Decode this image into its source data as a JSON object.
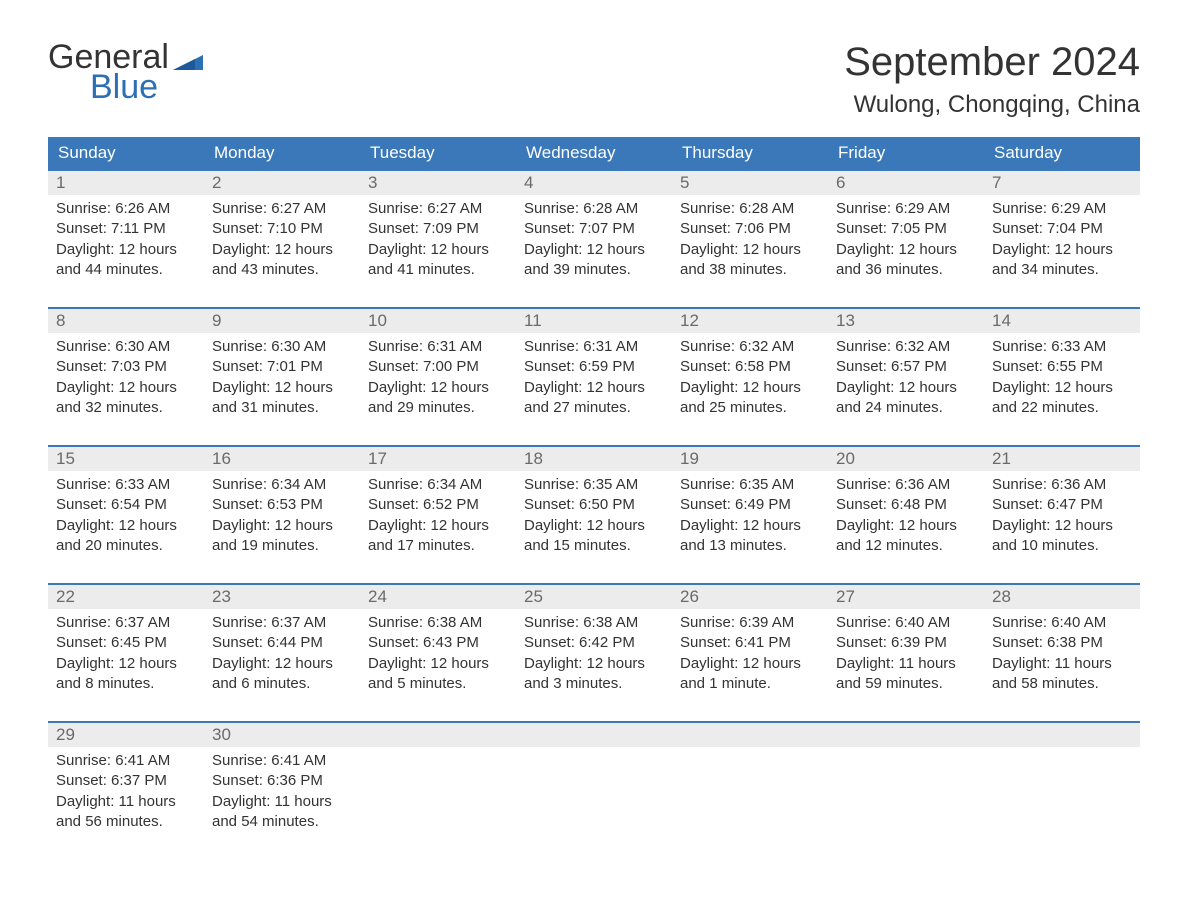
{
  "logo": {
    "text1": "General",
    "text2": "Blue",
    "flag_color": "#2d6fb5"
  },
  "title": "September 2024",
  "location": "Wulong, Chongqing, China",
  "colors": {
    "header_bg": "#3a78b9",
    "header_text": "#ffffff",
    "daynum_bg": "#ececec",
    "daynum_text": "#6a6a6a",
    "body_text": "#333333",
    "row_border": "#3a78b9",
    "background": "#ffffff"
  },
  "fonts": {
    "title_size_pt": 30,
    "location_size_pt": 18,
    "header_size_pt": 13,
    "body_size_pt": 11
  },
  "weekdays": [
    "Sunday",
    "Monday",
    "Tuesday",
    "Wednesday",
    "Thursday",
    "Friday",
    "Saturday"
  ],
  "weeks": [
    [
      {
        "n": "1",
        "sunrise": "6:26 AM",
        "sunset": "7:11 PM",
        "daylight": "12 hours and 44 minutes."
      },
      {
        "n": "2",
        "sunrise": "6:27 AM",
        "sunset": "7:10 PM",
        "daylight": "12 hours and 43 minutes."
      },
      {
        "n": "3",
        "sunrise": "6:27 AM",
        "sunset": "7:09 PM",
        "daylight": "12 hours and 41 minutes."
      },
      {
        "n": "4",
        "sunrise": "6:28 AM",
        "sunset": "7:07 PM",
        "daylight": "12 hours and 39 minutes."
      },
      {
        "n": "5",
        "sunrise": "6:28 AM",
        "sunset": "7:06 PM",
        "daylight": "12 hours and 38 minutes."
      },
      {
        "n": "6",
        "sunrise": "6:29 AM",
        "sunset": "7:05 PM",
        "daylight": "12 hours and 36 minutes."
      },
      {
        "n": "7",
        "sunrise": "6:29 AM",
        "sunset": "7:04 PM",
        "daylight": "12 hours and 34 minutes."
      }
    ],
    [
      {
        "n": "8",
        "sunrise": "6:30 AM",
        "sunset": "7:03 PM",
        "daylight": "12 hours and 32 minutes."
      },
      {
        "n": "9",
        "sunrise": "6:30 AM",
        "sunset": "7:01 PM",
        "daylight": "12 hours and 31 minutes."
      },
      {
        "n": "10",
        "sunrise": "6:31 AM",
        "sunset": "7:00 PM",
        "daylight": "12 hours and 29 minutes."
      },
      {
        "n": "11",
        "sunrise": "6:31 AM",
        "sunset": "6:59 PM",
        "daylight": "12 hours and 27 minutes."
      },
      {
        "n": "12",
        "sunrise": "6:32 AM",
        "sunset": "6:58 PM",
        "daylight": "12 hours and 25 minutes."
      },
      {
        "n": "13",
        "sunrise": "6:32 AM",
        "sunset": "6:57 PM",
        "daylight": "12 hours and 24 minutes."
      },
      {
        "n": "14",
        "sunrise": "6:33 AM",
        "sunset": "6:55 PM",
        "daylight": "12 hours and 22 minutes."
      }
    ],
    [
      {
        "n": "15",
        "sunrise": "6:33 AM",
        "sunset": "6:54 PM",
        "daylight": "12 hours and 20 minutes."
      },
      {
        "n": "16",
        "sunrise": "6:34 AM",
        "sunset": "6:53 PM",
        "daylight": "12 hours and 19 minutes."
      },
      {
        "n": "17",
        "sunrise": "6:34 AM",
        "sunset": "6:52 PM",
        "daylight": "12 hours and 17 minutes."
      },
      {
        "n": "18",
        "sunrise": "6:35 AM",
        "sunset": "6:50 PM",
        "daylight": "12 hours and 15 minutes."
      },
      {
        "n": "19",
        "sunrise": "6:35 AM",
        "sunset": "6:49 PM",
        "daylight": "12 hours and 13 minutes."
      },
      {
        "n": "20",
        "sunrise": "6:36 AM",
        "sunset": "6:48 PM",
        "daylight": "12 hours and 12 minutes."
      },
      {
        "n": "21",
        "sunrise": "6:36 AM",
        "sunset": "6:47 PM",
        "daylight": "12 hours and 10 minutes."
      }
    ],
    [
      {
        "n": "22",
        "sunrise": "6:37 AM",
        "sunset": "6:45 PM",
        "daylight": "12 hours and 8 minutes."
      },
      {
        "n": "23",
        "sunrise": "6:37 AM",
        "sunset": "6:44 PM",
        "daylight": "12 hours and 6 minutes."
      },
      {
        "n": "24",
        "sunrise": "6:38 AM",
        "sunset": "6:43 PM",
        "daylight": "12 hours and 5 minutes."
      },
      {
        "n": "25",
        "sunrise": "6:38 AM",
        "sunset": "6:42 PM",
        "daylight": "12 hours and 3 minutes."
      },
      {
        "n": "26",
        "sunrise": "6:39 AM",
        "sunset": "6:41 PM",
        "daylight": "12 hours and 1 minute."
      },
      {
        "n": "27",
        "sunrise": "6:40 AM",
        "sunset": "6:39 PM",
        "daylight": "11 hours and 59 minutes."
      },
      {
        "n": "28",
        "sunrise": "6:40 AM",
        "sunset": "6:38 PM",
        "daylight": "11 hours and 58 minutes."
      }
    ],
    [
      {
        "n": "29",
        "sunrise": "6:41 AM",
        "sunset": "6:37 PM",
        "daylight": "11 hours and 56 minutes."
      },
      {
        "n": "30",
        "sunrise": "6:41 AM",
        "sunset": "6:36 PM",
        "daylight": "11 hours and 54 minutes."
      },
      {
        "empty": true
      },
      {
        "empty": true
      },
      {
        "empty": true
      },
      {
        "empty": true
      },
      {
        "empty": true
      }
    ]
  ],
  "labels": {
    "sunrise_prefix": "Sunrise: ",
    "sunset_prefix": "Sunset: ",
    "daylight_prefix": "Daylight: "
  }
}
